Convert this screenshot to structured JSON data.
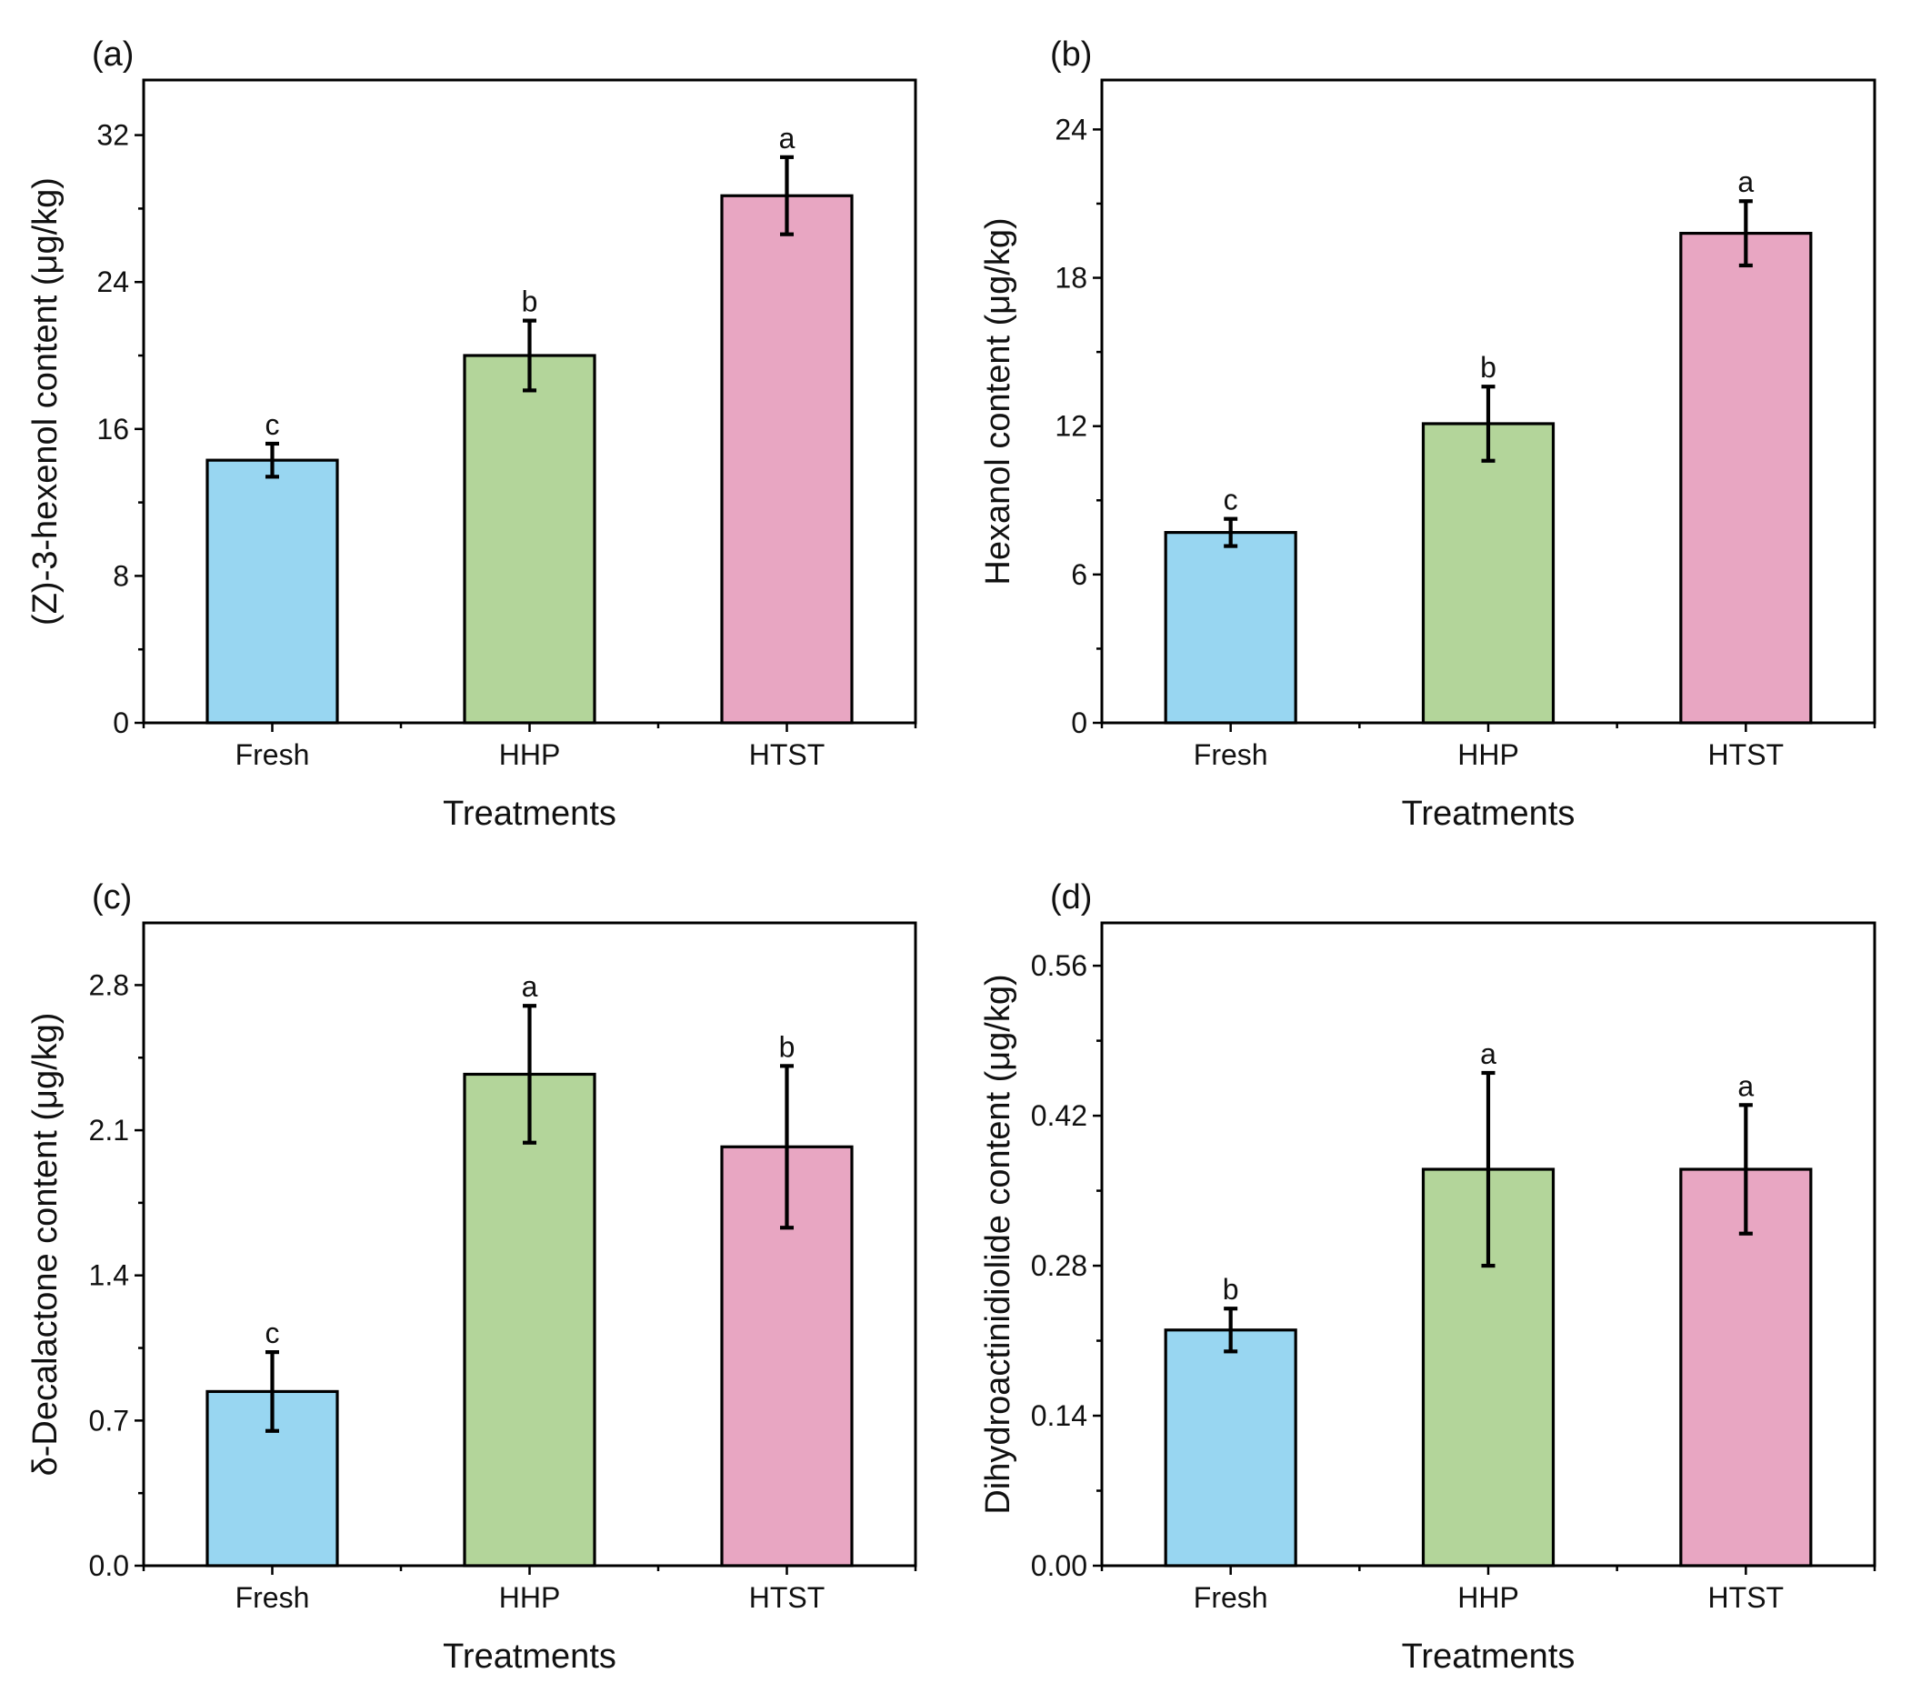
{
  "colors": {
    "Fresh": "#98d6f1",
    "HHP": "#b3d59a",
    "HTST": "#e8a6c2",
    "axis": "#000000"
  },
  "chart_data": [
    {
      "type": "bar",
      "panel_label": "(a)",
      "title": "",
      "categories": [
        "Fresh",
        "HHP",
        "HTST"
      ],
      "values": [
        14.3,
        20.0,
        28.7
      ],
      "errors": [
        0.9,
        1.9,
        2.1
      ],
      "significance": [
        "c",
        "b",
        "a"
      ],
      "xlabel": "Treatments",
      "ylabel": "(Z)-3-hexenol content (μg/kg)",
      "ylim": [
        0,
        35
      ],
      "yticks": [
        0,
        8,
        16,
        24,
        32
      ],
      "ytick_labels": [
        "0",
        "8",
        "16",
        "24",
        "32"
      ],
      "grid": false
    },
    {
      "type": "bar",
      "panel_label": "(b)",
      "title": "",
      "categories": [
        "Fresh",
        "HHP",
        "HTST"
      ],
      "values": [
        7.7,
        12.1,
        19.8
      ],
      "errors": [
        0.55,
        1.5,
        1.3
      ],
      "significance": [
        "c",
        "b",
        "a"
      ],
      "xlabel": "Treatments",
      "ylabel": "Hexanol content (μg/kg)",
      "ylim": [
        0,
        26
      ],
      "yticks": [
        0,
        6,
        12,
        18,
        24
      ],
      "ytick_labels": [
        "0",
        "6",
        "12",
        "18",
        "24"
      ],
      "grid": false
    },
    {
      "type": "bar",
      "panel_label": "(c)",
      "title": "",
      "categories": [
        "Fresh",
        "HHP",
        "HTST"
      ],
      "values": [
        0.84,
        2.37,
        2.02
      ],
      "errors": [
        0.19,
        0.33,
        0.39
      ],
      "significance": [
        "c",
        "a",
        "b"
      ],
      "xlabel": "Treatments",
      "ylabel": "δ-Decalactone content (μg/kg)",
      "ylim": [
        0,
        3.1
      ],
      "yticks": [
        0,
        0.7,
        1.4,
        2.1,
        2.8
      ],
      "ytick_labels": [
        "0.0",
        "0.7",
        "1.4",
        "2.1",
        "2.8"
      ],
      "grid": false
    },
    {
      "type": "bar",
      "panel_label": "(d)",
      "title": "",
      "categories": [
        "Fresh",
        "HHP",
        "HTST"
      ],
      "values": [
        0.22,
        0.37,
        0.37
      ],
      "errors": [
        0.02,
        0.09,
        0.06
      ],
      "significance": [
        "b",
        "a",
        "a"
      ],
      "xlabel": "Treatments",
      "ylabel": "Dihydroactinidiolide content (μg/kg)",
      "ylim": [
        0,
        0.6
      ],
      "yticks": [
        0,
        0.14,
        0.28,
        0.42,
        0.56
      ],
      "ytick_labels": [
        "0.00",
        "0.14",
        "0.28",
        "0.42",
        "0.56"
      ],
      "grid": false
    }
  ]
}
